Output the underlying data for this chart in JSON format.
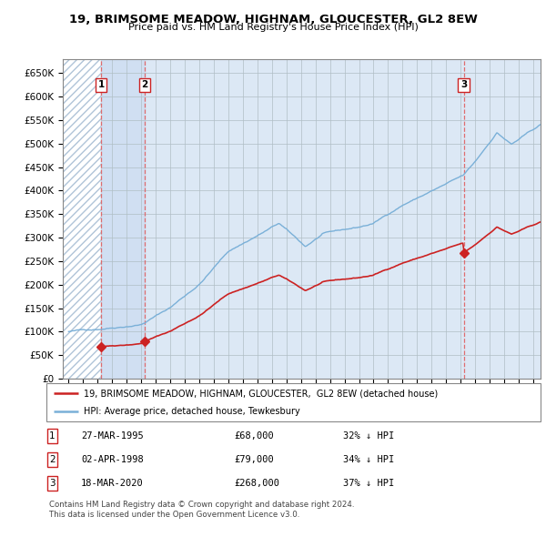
{
  "title": "19, BRIMSOME MEADOW, HIGHNAM, GLOUCESTER, GL2 8EW",
  "subtitle": "Price paid vs. HM Land Registry's House Price Index (HPI)",
  "sale_year_vals": [
    1995.24,
    1998.25,
    2020.21
  ],
  "sale_prices": [
    68000,
    79000,
    268000
  ],
  "sale_labels": [
    "1",
    "2",
    "3"
  ],
  "hpi_color": "#7ab0d8",
  "price_color": "#cc2222",
  "legend_entries": [
    "19, BRIMSOME MEADOW, HIGHNAM, GLOUCESTER,  GL2 8EW (detached house)",
    "HPI: Average price, detached house, Tewkesbury"
  ],
  "table_rows": [
    [
      "1",
      "27-MAR-1995",
      "£68,000",
      "32% ↓ HPI"
    ],
    [
      "2",
      "02-APR-1998",
      "£79,000",
      "34% ↓ HPI"
    ],
    [
      "3",
      "18-MAR-2020",
      "£268,000",
      "37% ↓ HPI"
    ]
  ],
  "footnote1": "Contains HM Land Registry data © Crown copyright and database right 2024.",
  "footnote2": "This data is licensed under the Open Government Licence v3.0.",
  "ylim": [
    0,
    680000
  ],
  "yticks": [
    0,
    50000,
    100000,
    150000,
    200000,
    250000,
    300000,
    350000,
    400000,
    450000,
    500000,
    550000,
    600000,
    650000
  ],
  "ytick_labels": [
    "£0",
    "£50K",
    "£100K",
    "£150K",
    "£200K",
    "£250K",
    "£300K",
    "£350K",
    "£400K",
    "£450K",
    "£500K",
    "£550K",
    "£600K",
    "£650K"
  ],
  "plot_bg_color": "#dce8f5",
  "grid_color": "#b0bec5",
  "hatch_color": "#c8d8e8"
}
